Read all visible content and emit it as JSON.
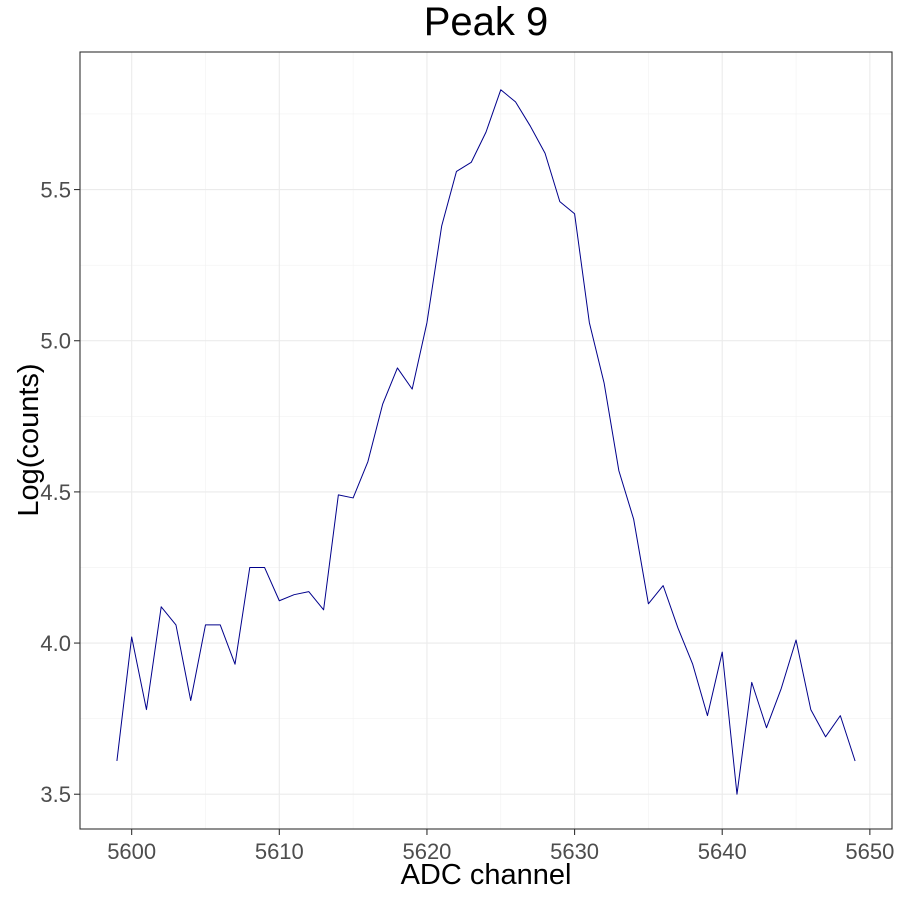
{
  "chart_data": {
    "type": "line",
    "title": "Peak 9",
    "xlabel": "ADC channel",
    "ylabel": "Log(counts)",
    "xlim": [
      5596.5,
      5651.5
    ],
    "ylim": [
      3.385,
      5.955
    ],
    "x_ticks": [
      5600,
      5610,
      5620,
      5630,
      5640,
      5650
    ],
    "y_ticks": [
      3.5,
      4.0,
      4.5,
      5.0,
      5.5
    ],
    "x_tick_labels": [
      "5600",
      "5610",
      "5620",
      "5630",
      "5640",
      "5650"
    ],
    "y_tick_labels": [
      "3.5",
      "4.0",
      "4.5",
      "5.0",
      "5.5"
    ],
    "grid": true,
    "line_color": "#00008b",
    "x": [
      5599,
      5600,
      5601,
      5602,
      5603,
      5604,
      5605,
      5606,
      5607,
      5608,
      5609,
      5610,
      5611,
      5612,
      5613,
      5614,
      5615,
      5616,
      5617,
      5618,
      5619,
      5620,
      5621,
      5622,
      5623,
      5624,
      5625,
      5626,
      5627,
      5628,
      5629,
      5630,
      5631,
      5632,
      5633,
      5634,
      5635,
      5636,
      5637,
      5638,
      5639,
      5640,
      5641,
      5642,
      5643,
      5644,
      5645,
      5646,
      5647,
      5648,
      5649
    ],
    "y": [
      3.61,
      4.02,
      3.78,
      4.12,
      4.06,
      3.81,
      4.06,
      4.06,
      3.93,
      4.25,
      4.25,
      4.14,
      4.16,
      4.17,
      4.11,
      4.49,
      4.48,
      4.6,
      4.79,
      4.91,
      4.84,
      5.06,
      5.38,
      5.56,
      5.59,
      5.69,
      5.83,
      5.79,
      5.71,
      5.62,
      5.46,
      5.42,
      5.06,
      4.86,
      4.57,
      4.41,
      4.13,
      4.19,
      4.05,
      3.93,
      3.76,
      3.97,
      3.5,
      3.87,
      3.72,
      3.85,
      4.01,
      3.78,
      3.69,
      3.76,
      3.61
    ]
  }
}
